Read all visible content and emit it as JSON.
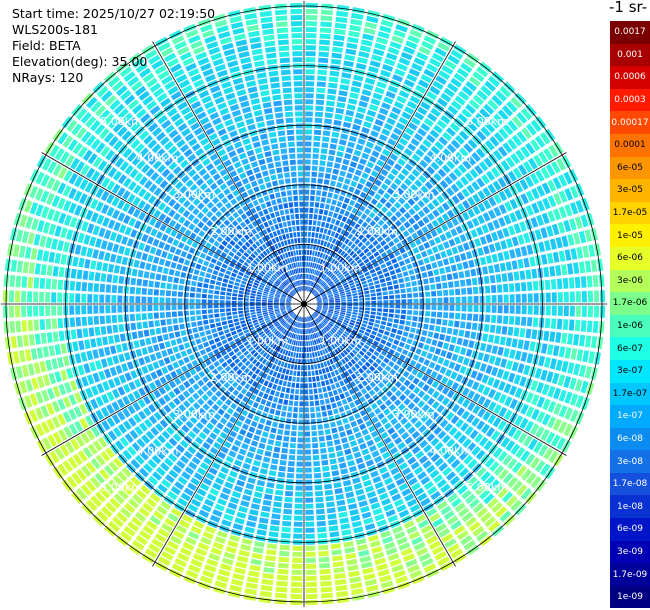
{
  "info": {
    "start_time": "Start time: 2025/10/27 02:19:50",
    "instrument": "WLS200s-181",
    "field": "Field: BETA",
    "elevation": "Elevation(deg): 35.00",
    "nrays": "NRays: 120"
  },
  "colorbar": {
    "unit_label": "-1 sr-",
    "ticks": [
      "0.0017",
      "0.001",
      "0.0006",
      "0.0003",
      "0.00017",
      "0.0001",
      "6e-05",
      "3e-05",
      "1.7e-05",
      "1e-05",
      "6e-06",
      "3e-06",
      "1.7e-06",
      "1e-06",
      "6e-07",
      "3e-07",
      "1.7e-07",
      "1e-07",
      "6e-08",
      "3e-08",
      "1.7e-08",
      "1e-08",
      "6e-09",
      "3e-09",
      "1.7e-09",
      "1e-09"
    ],
    "colors": [
      "#7a0000",
      "#a80000",
      "#d40000",
      "#ff1a00",
      "#ff4800",
      "#ff7400",
      "#ff9600",
      "#ffb400",
      "#ffd200",
      "#fff000",
      "#e6ff28",
      "#b4ff5a",
      "#7dff8c",
      "#4affbe",
      "#1effe6",
      "#00e6ff",
      "#00c8ff",
      "#00aaff",
      "#0a8cf0",
      "#1470e6",
      "#1450dc",
      "#0a32d2",
      "#0014c8",
      "#0000b4",
      "#00009b",
      "#000082"
    ]
  },
  "chart_data": {
    "type": "heatmap",
    "projection": "polar PPI scan",
    "field": "BETA",
    "elevation_deg": 35.0,
    "n_rays": 120,
    "range_rings_km": [
      1,
      2,
      3,
      4,
      5
    ],
    "range_ring_labels": [
      "1.00km",
      "2.00km",
      "3.00km",
      "4.00km",
      "5.00km"
    ],
    "spokes_deg": [
      0,
      30,
      60,
      90,
      120,
      150,
      180,
      210,
      240,
      270,
      300,
      330
    ],
    "color_scale": "log",
    "value_range": [
      1e-09,
      0.0017
    ],
    "max_range_km": 5.0
  }
}
